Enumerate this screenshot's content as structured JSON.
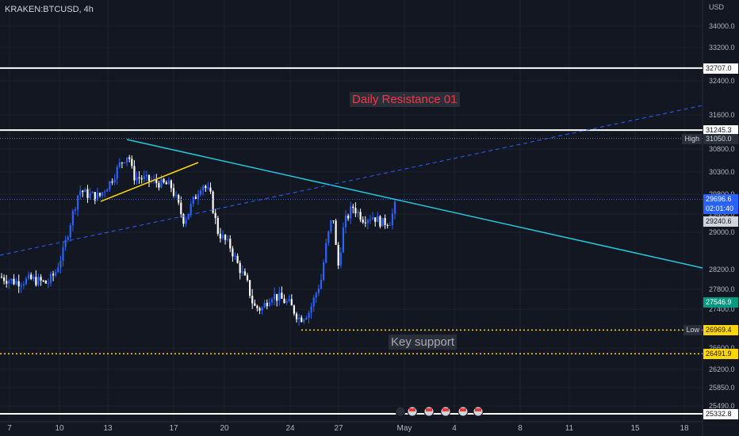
{
  "header": {
    "symbol": "KRAKEN:BTCUSD, 4h"
  },
  "colors": {
    "bg": "#131722",
    "up": "#2962ff",
    "down": "#ffffff",
    "grid": "#1e222d",
    "trend": "#26c6da",
    "yellow": "#ffd600",
    "dashed": "#2962ff"
  },
  "chart_data": {
    "type": "candlestick",
    "currency": "USD",
    "ylim": [
      25200,
      34300
    ],
    "xlim": [
      0,
      930
    ],
    "x_tick_labels": [
      "7",
      "10",
      "13",
      "17",
      "20",
      "24",
      "27",
      "May",
      "4",
      "8",
      "11",
      "15",
      "18"
    ],
    "y_tick_labels": [
      "34000.0",
      "33200.0",
      "32400.0",
      "31600.0",
      "30800.0",
      "30300.0",
      "29800.0",
      "29400.0",
      "29000.0",
      "28200.0",
      "27800.0",
      "27400.0",
      "26600.0",
      "26200.0",
      "25850.0",
      "25490.0"
    ],
    "horizontal_levels": [
      {
        "price": 32707.0,
        "label": "32707.0",
        "style": "solid"
      },
      {
        "price": 31245.3,
        "label": "31245.3",
        "style": "solid"
      },
      {
        "price": 25332.8,
        "label": "25332.8",
        "style": "solid"
      },
      {
        "price": 26491.9,
        "label": "26491.9",
        "style": "dotted-yellow"
      },
      {
        "price": 26969.4,
        "label": "26969.4",
        "style": "dotted-yellow",
        "tag": "Low"
      }
    ],
    "price_labels": [
      {
        "price": 31050.0,
        "label": "31050.0",
        "tag": "High"
      },
      {
        "price": 29696.6,
        "label": "29696.6",
        "sub": "02:01:40",
        "current": true
      },
      {
        "price": 29240.6,
        "label": "29240.6"
      },
      {
        "price": 27546.9,
        "label": "27546.9"
      }
    ],
    "annotations": [
      {
        "text": "Daily Resistance 01",
        "color": "red"
      },
      {
        "text": "Key support",
        "color": "grey"
      }
    ]
  }
}
